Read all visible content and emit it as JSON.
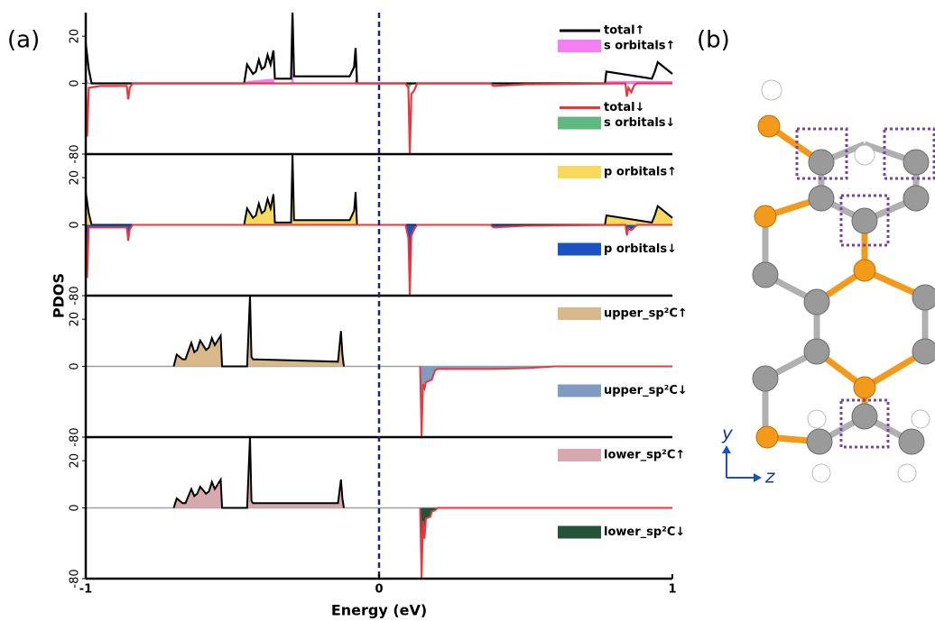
{
  "labels": {
    "a": "(a)",
    "b": "(b)",
    "y_axis": "y",
    "z_axis": "z"
  },
  "chart_data": {
    "type": "line",
    "x_label": "Energy (eV)",
    "y_label": "PDOS",
    "xlim": [
      -1,
      1
    ],
    "xticks": [
      -1,
      0,
      1
    ],
    "vline": 0,
    "vline_color": "#1a237e",
    "panels": [
      {
        "ylim": [
          -80,
          30
        ],
        "yticks": [
          -80,
          0,
          20
        ],
        "series": [
          {
            "name": "total↑",
            "style": "line",
            "color": "#000000",
            "x": [
              -1,
              -0.99,
              -0.98,
              -0.46,
              -0.45,
              -0.43,
              -0.42,
              -0.41,
              -0.4,
              -0.39,
              -0.38,
              -0.37,
              -0.36,
              -0.355,
              -0.3,
              -0.295,
              -0.29,
              -0.1,
              -0.085,
              -0.08,
              -0.075,
              0.77,
              0.775,
              0.93,
              0.94,
              0.95,
              1
            ],
            "values": [
              17,
              6,
              0,
              0,
              8,
              4,
              5,
              10,
              6,
              7,
              12,
              8,
              14,
              2,
              2,
              30,
              3,
              3,
              7,
              15,
              0,
              0,
              5,
              2,
              5,
              9,
              4
            ]
          },
          {
            "name": "s orbitals↑",
            "style": "area",
            "color": "#f57ef5",
            "x": [
              -1,
              -0.99,
              -0.46,
              -0.45,
              -0.36,
              -0.355,
              -0.3,
              -0.295,
              -0.29,
              -0.085,
              -0.08,
              -0.075,
              0.77,
              0.775,
              1
            ],
            "values": [
              3,
              0,
              0,
              1,
              2,
              0,
              0,
              5,
              0,
              0,
              2,
              0,
              0,
              1,
              1
            ]
          },
          {
            "name": "total↓",
            "style": "line",
            "color": "#e8383d",
            "x": [
              -1,
              -0.995,
              -0.99,
              -0.95,
              -0.86,
              -0.855,
              -0.85,
              -0.84,
              0.09,
              0.1,
              0.105,
              0.11,
              0.12,
              0.13,
              0.38,
              0.39,
              0.5,
              0.84,
              0.845,
              0.85,
              0.86,
              0.87,
              0.88,
              1
            ],
            "values": [
              0,
              -60,
              -5,
              -3,
              -3,
              -18,
              -5,
              0,
              0,
              -5,
              -80,
              -12,
              -8,
              0,
              0,
              -3,
              -1,
              0,
              -15,
              -5,
              -10,
              -2,
              0,
              0
            ]
          },
          {
            "name": "s orbitals↓",
            "style": "area",
            "color": "#5fb87f",
            "x": [
              0.09,
              0.1,
              0.11,
              0.12,
              1
            ],
            "values": [
              0,
              -6,
              -2,
              0,
              0
            ]
          }
        ]
      },
      {
        "ylim": [
          -80,
          30
        ],
        "yticks": [
          -80,
          0,
          20
        ],
        "series": [
          {
            "name": "p orbitals↑",
            "style": "area",
            "color": "#f7d95c",
            "edge": "#000000",
            "x": [
              -1,
              -0.99,
              -0.98,
              -0.46,
              -0.45,
              -0.43,
              -0.42,
              -0.41,
              -0.4,
              -0.39,
              -0.38,
              -0.37,
              -0.36,
              -0.355,
              -0.3,
              -0.295,
              -0.29,
              -0.1,
              -0.085,
              -0.08,
              -0.075,
              0.77,
              0.775,
              0.93,
              0.94,
              0.95,
              1
            ],
            "values": [
              14,
              5,
              0,
              0,
              7,
              3,
              4,
              9,
              5,
              6,
              11,
              7,
              13,
              1,
              1,
              30,
              2,
              2,
              6,
              14,
              0,
              0,
              4,
              1,
              4,
              8,
              3
            ]
          },
          {
            "name": "p orbitals↓",
            "style": "area",
            "color": "#1a52c2",
            "edge": "#e8383d",
            "x": [
              -1,
              -0.995,
              -0.99,
              -0.86,
              -0.855,
              -0.85,
              -0.84,
              0.09,
              0.1,
              0.105,
              0.11,
              0.12,
              0.13,
              0.38,
              0.39,
              0.5,
              0.84,
              0.845,
              0.85,
              0.86,
              0.88,
              1
            ],
            "values": [
              0,
              -60,
              -3,
              -3,
              -18,
              -5,
              0,
              0,
              -15,
              -80,
              -12,
              -5,
              0,
              0,
              -3,
              -1,
              0,
              -12,
              -4,
              -6,
              0,
              0
            ]
          }
        ]
      },
      {
        "ylim": [
          -80,
          30
        ],
        "yticks": [
          -80,
          0,
          20
        ],
        "series": [
          {
            "name": "upper_sp²C↑",
            "style": "area",
            "color": "#d9b98c",
            "edge": "#000000",
            "x": [
              -0.7,
              -0.69,
              -0.67,
              -0.66,
              -0.64,
              -0.63,
              -0.62,
              -0.61,
              -0.59,
              -0.58,
              -0.57,
              -0.56,
              -0.54,
              -0.535,
              -0.45,
              -0.44,
              -0.435,
              -0.43,
              -0.14,
              -0.13,
              -0.125,
              -0.12
            ],
            "values": [
              0,
              5,
              3,
              3,
              10,
              6,
              7,
              11,
              7,
              8,
              12,
              9,
              13,
              0,
              0,
              30,
              4,
              3,
              2,
              15,
              5,
              0
            ]
          },
          {
            "name": "upper_sp²C↓",
            "style": "area",
            "color": "#7f9cc0",
            "edge": "#e8383d",
            "x": [
              0.14,
              0.145,
              0.15,
              0.155,
              0.16,
              0.18,
              0.19,
              0.2,
              0.38,
              0.5,
              0.6,
              1
            ],
            "values": [
              0,
              -80,
              -20,
              -25,
              -18,
              -15,
              -5,
              -3,
              -3,
              -2,
              0,
              0
            ]
          }
        ]
      },
      {
        "ylim": [
          -80,
          30
        ],
        "yticks": [
          -80,
          0,
          20
        ],
        "series": [
          {
            "name": "lower_sp²C↑",
            "style": "area",
            "color": "#d7a8ad",
            "edge": "#000000",
            "x": [
              -0.7,
              -0.69,
              -0.67,
              -0.66,
              -0.64,
              -0.63,
              -0.62,
              -0.61,
              -0.59,
              -0.58,
              -0.57,
              -0.56,
              -0.54,
              -0.535,
              -0.45,
              -0.44,
              -0.435,
              -0.43,
              -0.14,
              -0.13,
              -0.125,
              -0.12
            ],
            "values": [
              0,
              4,
              2,
              2,
              8,
              5,
              6,
              9,
              6,
              7,
              11,
              8,
              12,
              0,
              0,
              30,
              3,
              2,
              2,
              12,
              4,
              0
            ]
          },
          {
            "name": "lower_sp²C↓",
            "style": "area",
            "color": "#24533a",
            "edge": "#e8383d",
            "x": [
              0.14,
              0.145,
              0.15,
              0.155,
              0.16,
              0.175,
              0.18,
              0.19,
              0.2,
              1
            ],
            "values": [
              0,
              -80,
              -15,
              -35,
              -12,
              -10,
              -4,
              -3,
              0,
              0
            ]
          }
        ]
      }
    ]
  }
}
